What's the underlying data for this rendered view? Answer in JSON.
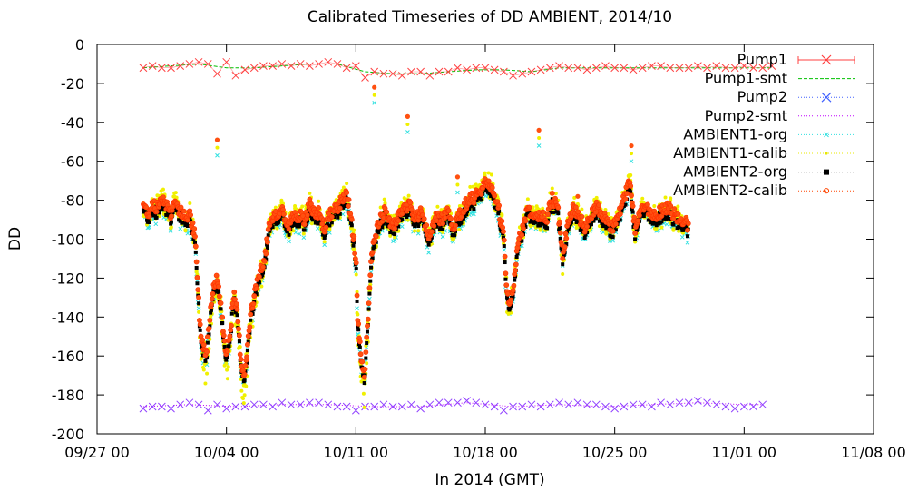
{
  "chart_data": {
    "type": "line",
    "title": "Calibrated Timeseries of DD AMBIENT, 2014/10",
    "xlabel": "In 2014 (GMT)",
    "ylabel": "DD",
    "xlim": [
      "09/27 00",
      "11/08 00"
    ],
    "ylim": [
      -200,
      0
    ],
    "x_ticks": [
      "09/27 00",
      "10/04 00",
      "10/11 00",
      "10/18 00",
      "10/25 00",
      "11/01 00",
      "11/08 00"
    ],
    "y_ticks": [
      "0",
      "-20",
      "-40",
      "-60",
      "-80",
      "-100",
      "-120",
      "-140",
      "-160",
      "-180",
      "-200"
    ],
    "grid": false,
    "legend_position": "top-right",
    "x_unit": "days since 09/27 00",
    "series": [
      {
        "name": "Pump1",
        "color": "#ff4040",
        "marker": "x",
        "style": "points",
        "x": [
          2.5,
          3,
          3.5,
          4,
          4.5,
          5,
          5.5,
          6,
          6.5,
          7,
          7.5,
          8,
          8.5,
          9,
          9.5,
          10,
          10.5,
          11,
          11.5,
          12,
          12.5,
          13,
          13.5,
          14,
          14.5,
          15,
          15.5,
          16,
          16.5,
          17,
          17.5,
          18,
          18.5,
          19,
          19.5,
          20,
          20.5,
          21,
          21.5,
          22,
          22.5,
          23,
          23.5,
          24,
          24.5,
          25,
          25.5,
          26,
          26.5,
          27,
          27.5,
          28,
          28.5,
          29,
          29.5,
          30,
          30.5,
          31,
          31.5,
          32,
          32.5,
          33,
          33.5,
          34,
          34.5,
          35,
          35.5,
          36,
          36.5
        ],
        "y": [
          -12,
          -11,
          -12,
          -12,
          -11,
          -10,
          -9,
          -10,
          -15,
          -9,
          -16,
          -13,
          -12,
          -11,
          -11,
          -10,
          -11,
          -10,
          -11,
          -10,
          -9,
          -10,
          -12,
          -11,
          -17,
          -14,
          -15,
          -15,
          -16,
          -14,
          -14,
          -16,
          -14,
          -14,
          -12,
          -13,
          -12,
          -12,
          -13,
          -14,
          -16,
          -15,
          -14,
          -13,
          -12,
          -11,
          -12,
          -12,
          -13,
          -12,
          -11,
          -12,
          -12,
          -13,
          -12,
          -11,
          -11,
          -12,
          -12,
          -12,
          -11,
          -12,
          -11,
          -12,
          -12,
          -11,
          -12,
          -12,
          -11
        ]
      },
      {
        "name": "Pump1-smt",
        "color": "#00c000",
        "style": "dashed line",
        "x": [
          2.5,
          4,
          5.5,
          7,
          8.5,
          10,
          11.5,
          13,
          14.5,
          16,
          17.5,
          19,
          20.5,
          22,
          23.5,
          25,
          26.5,
          28,
          29.5,
          31,
          32.5,
          34,
          35.5,
          36.5
        ],
        "y": [
          -12,
          -11,
          -10,
          -12,
          -12,
          -11,
          -10,
          -10,
          -14,
          -15,
          -15,
          -14,
          -13,
          -13,
          -14,
          -12,
          -12,
          -12,
          -12,
          -12,
          -12,
          -12,
          -12,
          -12
        ]
      },
      {
        "name": "Pump2",
        "color": "#4060ff",
        "marker": "x",
        "style": "points",
        "x": [
          2.5,
          3,
          3.5,
          4,
          4.5,
          5,
          5.5,
          6,
          6.5,
          7,
          7.5,
          8,
          8.5,
          9,
          9.5,
          10,
          10.5,
          11,
          11.5,
          12,
          12.5,
          13,
          13.5,
          14,
          14.5,
          15,
          15.5,
          16,
          16.5,
          17,
          17.5,
          18,
          18.5,
          19,
          19.5,
          20,
          20.5,
          21,
          21.5,
          22,
          22.5,
          23,
          23.5,
          24,
          24.5,
          25,
          25.5,
          26,
          26.5,
          27,
          27.5,
          28,
          28.5,
          29,
          29.5,
          30,
          30.5,
          31,
          31.5,
          32,
          32.5,
          33,
          33.5,
          34,
          34.5,
          35,
          35.5,
          36
        ],
        "y": [
          -187,
          -186,
          -186,
          -187,
          -185,
          -184,
          -185,
          -188,
          -185,
          -187,
          -186,
          -186,
          -185,
          -185,
          -186,
          -184,
          -185,
          -185,
          -184,
          -184,
          -185,
          -186,
          -186,
          -188,
          -186,
          -186,
          -185,
          -186,
          -186,
          -185,
          -187,
          -185,
          -184,
          -184,
          -184,
          -183,
          -184,
          -185,
          -186,
          -188,
          -186,
          -186,
          -185,
          -186,
          -185,
          -184,
          -185,
          -184,
          -185,
          -185,
          -186,
          -187,
          -186,
          -185,
          -185,
          -186,
          -184,
          -185,
          -184,
          -184,
          -183,
          -184,
          -185,
          -186,
          -187,
          -186,
          -186,
          -185
        ]
      },
      {
        "name": "Pump2-smt",
        "color": "#c000ff",
        "style": "dotted line",
        "x": [
          2.5,
          5,
          7.5,
          10,
          12.5,
          15,
          17.5,
          20,
          22.5,
          25,
          27.5,
          30,
          32.5,
          35,
          36
        ],
        "y": [
          -186,
          -185,
          -186,
          -185,
          -185,
          -186,
          -186,
          -184,
          -186,
          -185,
          -186,
          -185,
          -184,
          -185,
          -185
        ]
      },
      {
        "name": "AMBIENT1-org",
        "color": "#00e0e0",
        "marker": "x",
        "style": "points"
      },
      {
        "name": "AMBIENT1-calib",
        "color": "#e8e800",
        "marker": "dot",
        "style": "points"
      },
      {
        "name": "AMBIENT2-org",
        "color": "#000000",
        "marker": "square",
        "style": "points"
      },
      {
        "name": "AMBIENT2-calib",
        "color": "#ff4500",
        "marker": "circle",
        "style": "points",
        "x": [
          2.5,
          2.8,
          3.0,
          3.2,
          3.5,
          3.8,
          4.0,
          4.2,
          4.5,
          4.8,
          5.0,
          5.3,
          5.6,
          5.9,
          6.0,
          6.2,
          6.5,
          6.8,
          7.0,
          7.2,
          7.4,
          7.6,
          7.8,
          8.0,
          8.2,
          8.4,
          8.5,
          8.7,
          9.0,
          9.3,
          9.6,
          9.8,
          10.0,
          10.3,
          10.6,
          10.9,
          11.2,
          11.5,
          11.8,
          12.0,
          12.3,
          12.6,
          12.9,
          13.2,
          13.5,
          13.8,
          14.0,
          14.1,
          14.3,
          14.5,
          14.6,
          14.8,
          15.0,
          15.3,
          15.6,
          16.0,
          16.3,
          16.6,
          16.9,
          17.2,
          17.5,
          17.8,
          18.0,
          18.3,
          18.6,
          19.0,
          19.3,
          19.6,
          20.0,
          20.3,
          20.6,
          21.0,
          21.3,
          21.6,
          22.0,
          22.1,
          22.3,
          22.5,
          22.7,
          22.8,
          23.0,
          23.3,
          23.6,
          24.0,
          24.3,
          24.6,
          24.9,
          25.2,
          25.5,
          25.8,
          26.1,
          26.4,
          26.7,
          27.0,
          27.3,
          27.6,
          27.9,
          28.2,
          28.5,
          28.8,
          29.1,
          29.4,
          29.7,
          30.0,
          30.3,
          30.6,
          30.9,
          31.2,
          31.5,
          31.8,
          32.0
        ],
        "y": [
          -83,
          -88,
          -82,
          -86,
          -79,
          -84,
          -88,
          -81,
          -87,
          -90,
          -88,
          -100,
          -150,
          -160,
          -150,
          -130,
          -120,
          -145,
          -160,
          -148,
          -130,
          -140,
          -165,
          -170,
          -150,
          -135,
          -130,
          -120,
          -115,
          -95,
          -90,
          -88,
          -85,
          -95,
          -90,
          -88,
          -92,
          -83,
          -90,
          -87,
          -95,
          -88,
          -86,
          -82,
          -76,
          -95,
          -110,
          -140,
          -165,
          -170,
          -150,
          -115,
          -100,
          -92,
          -86,
          -95,
          -90,
          -86,
          -83,
          -90,
          -88,
          -95,
          -100,
          -88,
          -92,
          -85,
          -96,
          -88,
          -82,
          -80,
          -78,
          -72,
          -75,
          -80,
          -98,
          -120,
          -135,
          -125,
          -110,
          -100,
          -96,
          -85,
          -90,
          -88,
          -92,
          -80,
          -84,
          -110,
          -90,
          -85,
          -90,
          -95,
          -88,
          -84,
          -88,
          -92,
          -95,
          -88,
          -80,
          -72,
          -95,
          -86,
          -84,
          -90,
          -88,
          -86,
          -85,
          -88,
          -92,
          -90,
          -95
        ]
      }
    ]
  }
}
